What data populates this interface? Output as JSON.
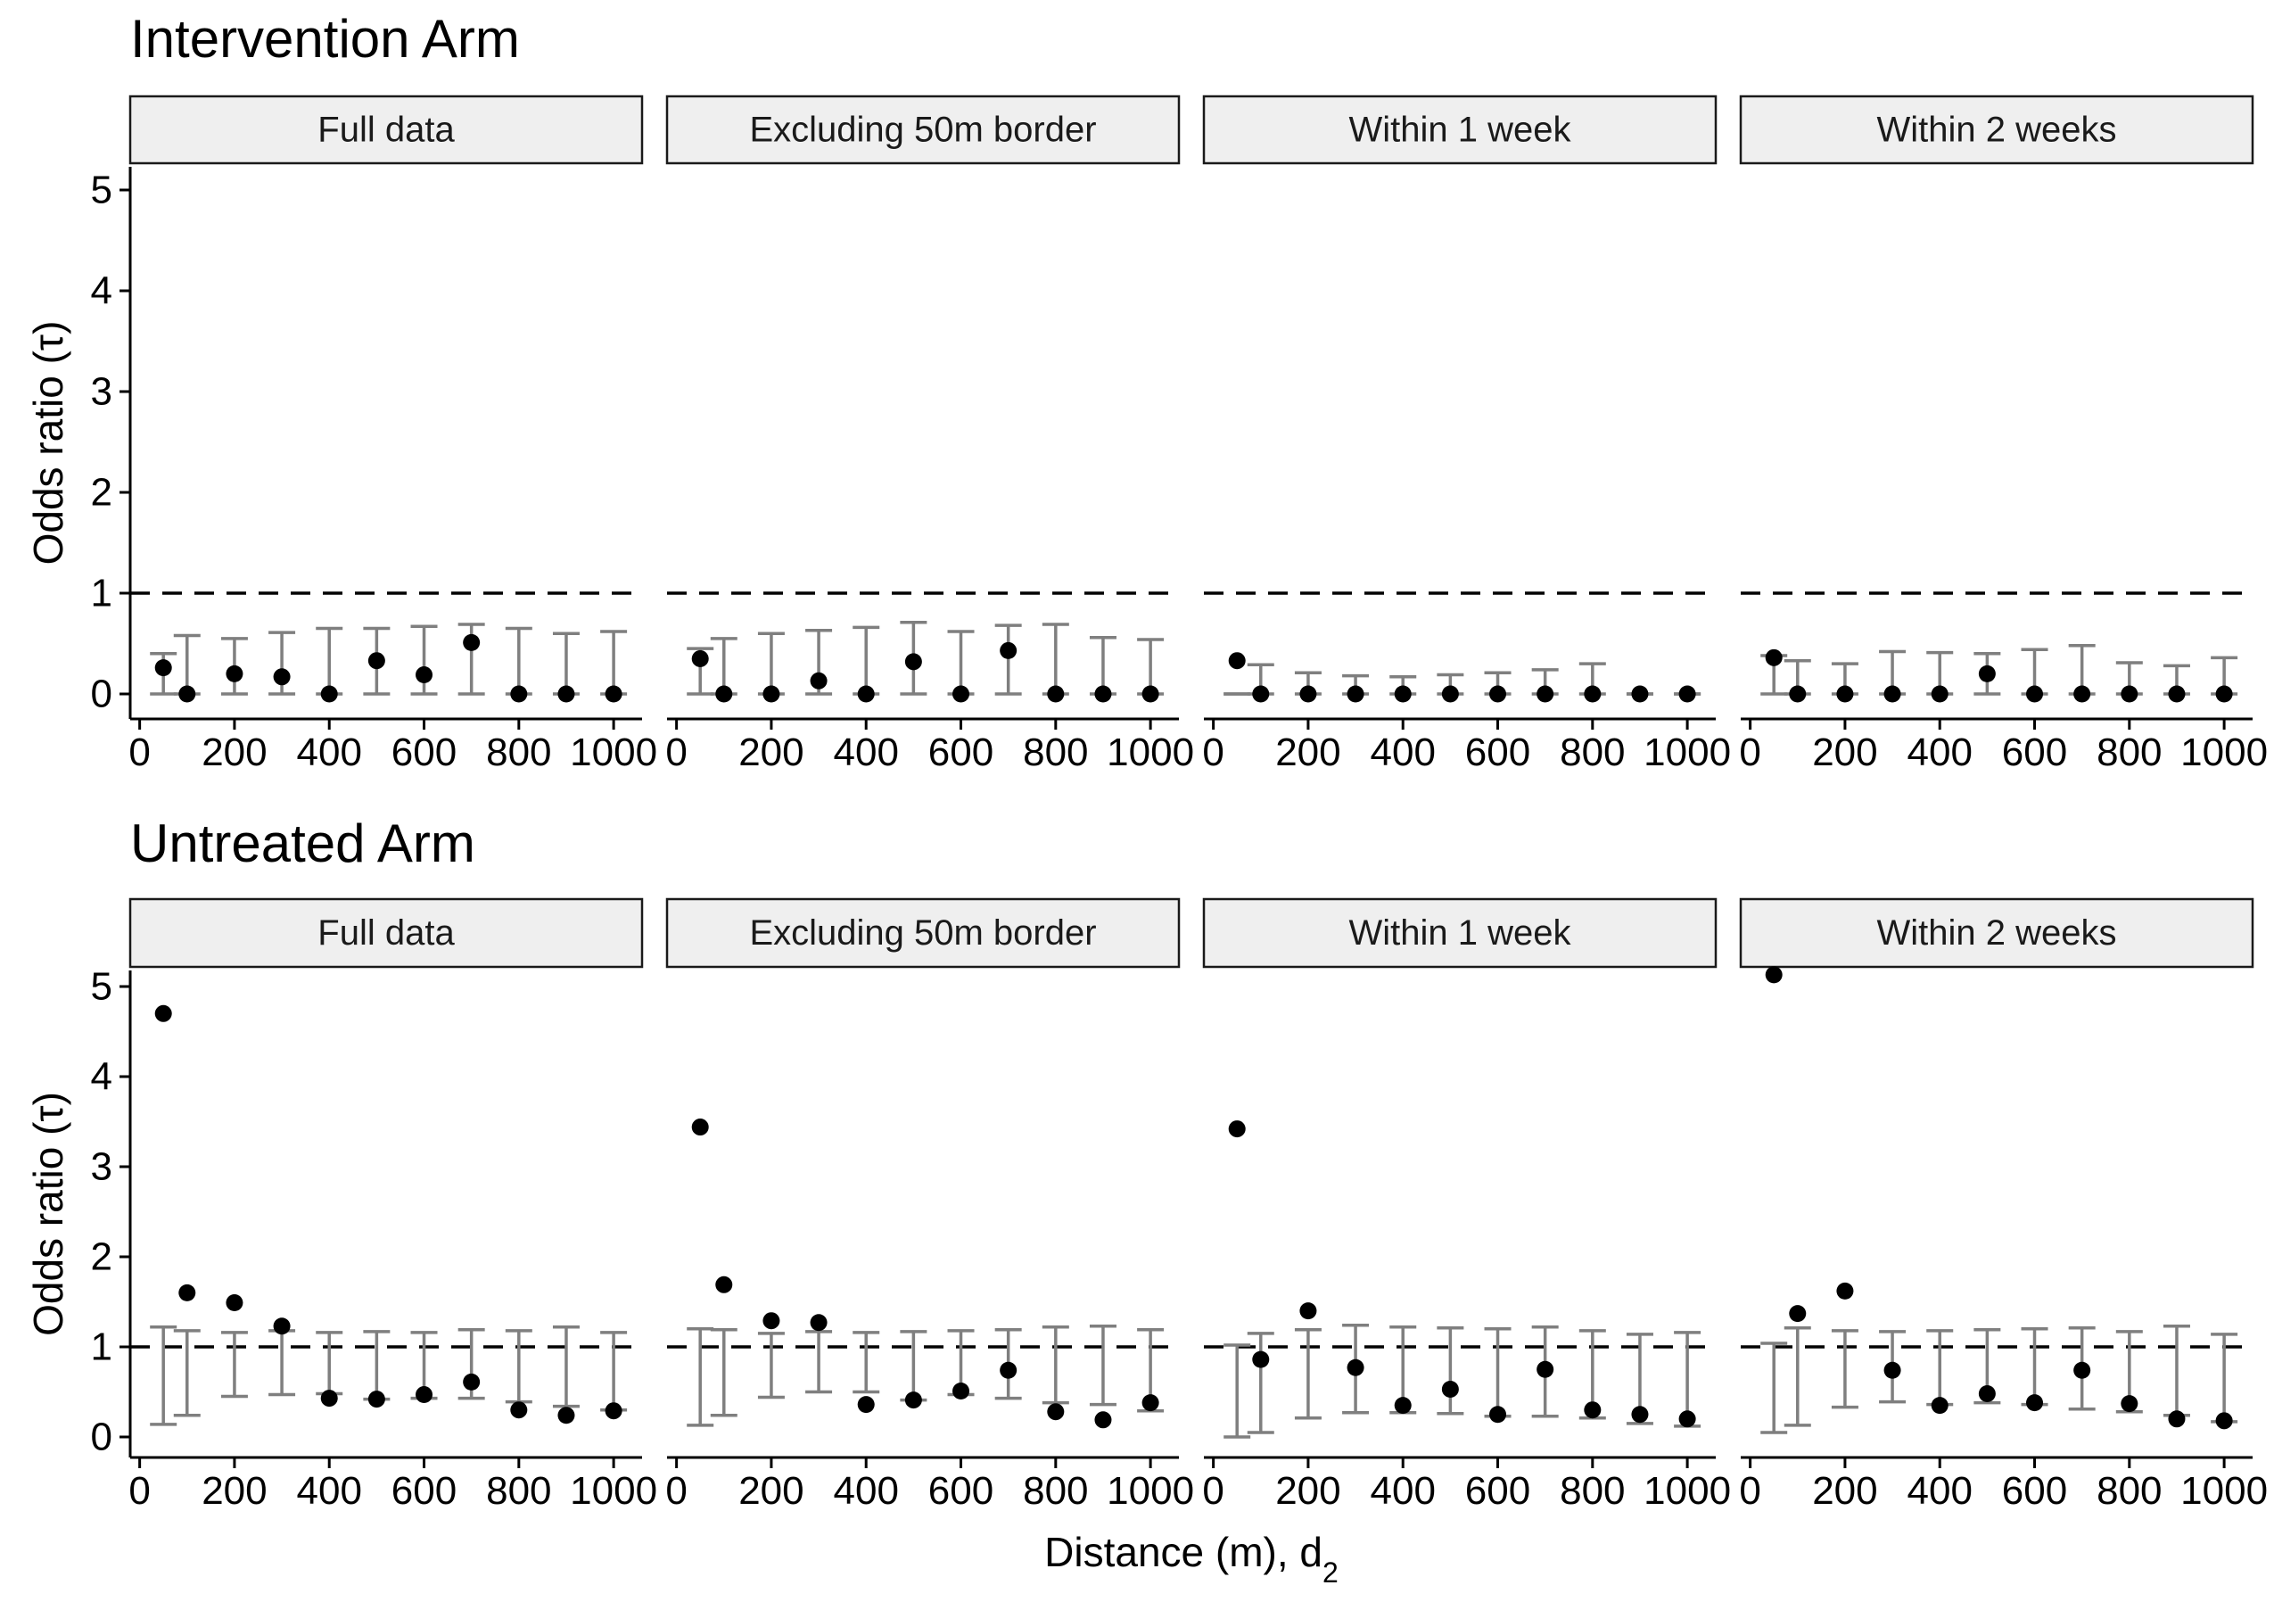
{
  "chart_data": {
    "type": "scatter",
    "x_title": "Distance (m), d",
    "x_title_subscript": "2",
    "y_title": "Odds ratio (τ)",
    "reference_line_y": 1,
    "x_ticks": [
      0,
      200,
      400,
      600,
      800,
      1000
    ],
    "x_tick_labels": [
      "0",
      "200",
      "400",
      "600",
      "800",
      "1000"
    ],
    "y_ticks": [
      0,
      1,
      2,
      3,
      4,
      5
    ],
    "y_tick_labels": [
      "0",
      "1",
      "2",
      "3",
      "4",
      "5"
    ],
    "xlim": [
      -20,
      1060
    ],
    "ylim": [
      -0.25,
      5.25
    ],
    "x": [
      50,
      100,
      200,
      300,
      400,
      500,
      600,
      700,
      800,
      900,
      1000
    ],
    "grid": false,
    "colors": {
      "point": "#000000",
      "errorbar": "#7f7f7f",
      "strip_fill": "#efefef",
      "strip_border": "#1a1a1a",
      "reference_line": "#000000"
    },
    "rows": [
      {
        "title": "Intervention Arm",
        "panels": [
          {
            "label": "Full data",
            "estimate": [
              0.26,
              0.0,
              0.2,
              0.17,
              0.0,
              0.33,
              0.19,
              0.51,
              0.0,
              0.0,
              0.0
            ],
            "lower": [
              0.0,
              0.0,
              0.0,
              0.0,
              0.0,
              0.0,
              0.0,
              0.0,
              0.0,
              0.0,
              0.0
            ],
            "upper": [
              0.4,
              0.58,
              0.55,
              0.61,
              0.65,
              0.65,
              0.67,
              0.69,
              0.65,
              0.6,
              0.62
            ]
          },
          {
            "label": "Excluding 50m border",
            "estimate": [
              0.35,
              0.0,
              0.0,
              0.13,
              0.0,
              0.32,
              0.0,
              0.43,
              0.0,
              0.0,
              0.0
            ],
            "lower": [
              0.0,
              0.0,
              0.0,
              0.0,
              0.0,
              0.0,
              0.0,
              0.0,
              0.0,
              0.0,
              0.0
            ],
            "upper": [
              0.45,
              0.55,
              0.6,
              0.63,
              0.66,
              0.71,
              0.62,
              0.68,
              0.69,
              0.56,
              0.54
            ]
          },
          {
            "label": "Within 1 week",
            "estimate": [
              0.33,
              0.0,
              0.0,
              0.0,
              0.0,
              0.0,
              0.0,
              0.0,
              0.0,
              0.0,
              0.0
            ],
            "lower": [
              0.0,
              0.0,
              0.0,
              0.0,
              0.0,
              0.0,
              0.0,
              0.0,
              0.0,
              0.0,
              0.0
            ],
            "upper": [
              0.0,
              0.29,
              0.21,
              0.18,
              0.17,
              0.19,
              0.21,
              0.24,
              0.3,
              0.0,
              0.0
            ]
          },
          {
            "label": "Within 2 weeks",
            "estimate": [
              0.36,
              0.0,
              0.0,
              0.0,
              0.0,
              0.2,
              0.0,
              0.0,
              0.0,
              0.0,
              0.0
            ],
            "lower": [
              0.0,
              0.0,
              0.0,
              0.0,
              0.0,
              0.0,
              0.0,
              0.0,
              0.0,
              0.0,
              0.0
            ],
            "upper": [
              0.38,
              0.33,
              0.3,
              0.42,
              0.41,
              0.4,
              0.44,
              0.48,
              0.31,
              0.28,
              0.36
            ]
          }
        ]
      },
      {
        "title": "Untreated Arm",
        "panels": [
          {
            "label": "Full data",
            "estimate": [
              4.7,
              1.6,
              1.49,
              1.23,
              0.43,
              0.42,
              0.47,
              0.61,
              0.3,
              0.24,
              0.29
            ],
            "lower": [
              0.14,
              0.24,
              0.45,
              0.47,
              0.48,
              0.42,
              0.43,
              0.43,
              0.39,
              0.34,
              0.3
            ],
            "upper": [
              1.22,
              1.18,
              1.16,
              1.18,
              1.16,
              1.17,
              1.16,
              1.19,
              1.18,
              1.22,
              1.16
            ]
          },
          {
            "label": "Excluding 50m border",
            "estimate": [
              3.44,
              1.69,
              1.29,
              1.27,
              0.36,
              0.41,
              0.51,
              0.74,
              0.28,
              0.19,
              0.38
            ],
            "lower": [
              0.13,
              0.24,
              0.44,
              0.5,
              0.5,
              0.41,
              0.47,
              0.43,
              0.38,
              0.36,
              0.29
            ],
            "upper": [
              1.2,
              1.19,
              1.15,
              1.17,
              1.16,
              1.17,
              1.18,
              1.19,
              1.22,
              1.23,
              1.19
            ]
          },
          {
            "label": "Within 1 week",
            "estimate": [
              3.42,
              0.86,
              1.4,
              0.77,
              0.35,
              0.53,
              0.25,
              0.75,
              0.3,
              0.25,
              0.2
            ],
            "lower": [
              0.0,
              0.05,
              0.21,
              0.27,
              0.27,
              0.26,
              0.23,
              0.23,
              0.21,
              0.15,
              0.12
            ],
            "upper": [
              1.02,
              1.15,
              1.19,
              1.24,
              1.22,
              1.21,
              1.2,
              1.22,
              1.18,
              1.14,
              1.16
            ]
          },
          {
            "label": "Within 2 weeks",
            "estimate": [
              5.13,
              1.37,
              1.62,
              0.74,
              0.35,
              0.48,
              0.38,
              0.74,
              0.37,
              0.2,
              0.18
            ],
            "lower": [
              0.05,
              0.13,
              0.33,
              0.39,
              0.36,
              0.38,
              0.36,
              0.31,
              0.28,
              0.24,
              0.17
            ],
            "upper": [
              1.04,
              1.21,
              1.18,
              1.17,
              1.18,
              1.19,
              1.2,
              1.21,
              1.17,
              1.23,
              1.14
            ]
          }
        ]
      }
    ]
  }
}
